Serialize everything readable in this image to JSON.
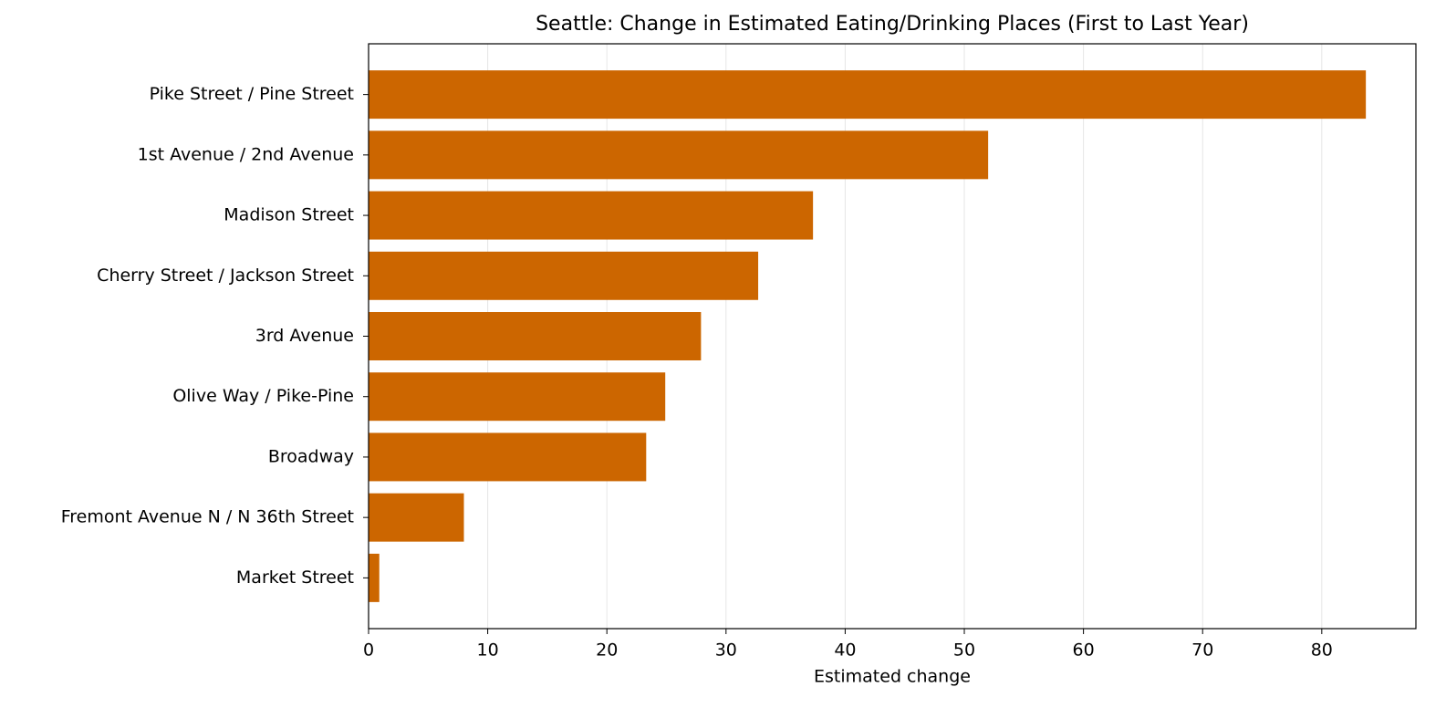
{
  "chart_data": {
    "type": "barh",
    "title": "Seattle: Change in Estimated Eating/Drinking Places (First to Last Year)",
    "xlabel": "Estimated change",
    "categories": [
      "Pike Street / Pine Street",
      "1st Avenue / 2nd Avenue",
      "Madison Street",
      "Cherry Street / Jackson Street",
      "3rd Avenue",
      "Olive Way / Pike-Pine",
      "Broadway",
      "Fremont Avenue N / N 36th Street",
      "Market Street"
    ],
    "values": [
      83.7,
      52.0,
      37.3,
      32.7,
      27.9,
      24.9,
      23.3,
      8.0,
      0.9
    ],
    "color": "#cc6600",
    "xlim": [
      0,
      87.9
    ],
    "xticks": [
      0,
      10,
      20,
      30,
      40,
      50,
      60,
      70,
      80
    ],
    "grid": true
  }
}
